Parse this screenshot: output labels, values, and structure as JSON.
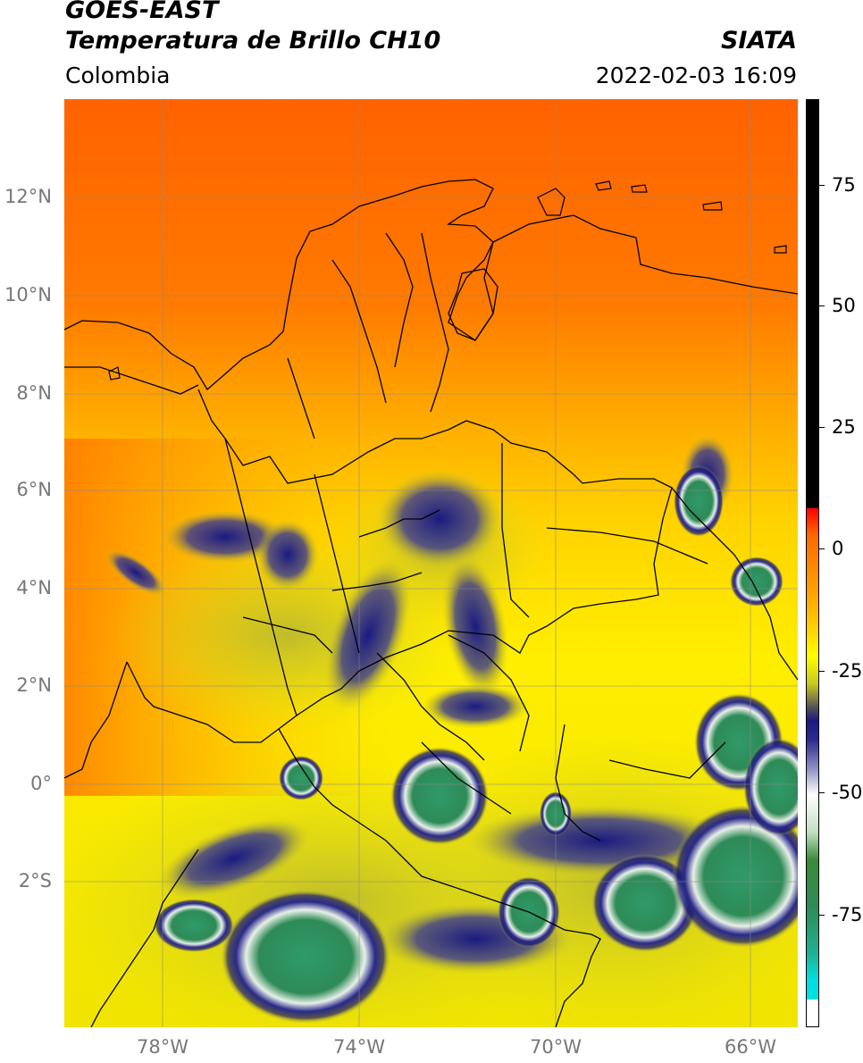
{
  "header": {
    "satellite": "GOES-EAST",
    "product": "Temperatura de Brillo CH10",
    "region": "Colombia",
    "agency": "SIATA",
    "datetime": "2022-02-03 16:09"
  },
  "axes": {
    "lat_labels": [
      "12°N",
      "10°N",
      "8°N",
      "6°N",
      "4°N",
      "2°N",
      "0°",
      "2°S"
    ],
    "lon_labels": [
      "78°W",
      "74°W",
      "70°W",
      "66°W"
    ],
    "grid": true
  },
  "colorbar": {
    "labels": [
      "75",
      "50",
      "25",
      "0",
      "-25",
      "-50",
      "-75"
    ],
    "units_hidden": true
  },
  "colors": {
    "warm_orange": "#ff6a00",
    "orange": "#ff9a00",
    "yellow": "#ffff00",
    "olive": "#c8c820",
    "navy": "#1a1a80",
    "white": "#ffffff",
    "green": "#2e8b57",
    "teal": "#20c0a0",
    "black": "#000000",
    "red": "#ff0000"
  }
}
